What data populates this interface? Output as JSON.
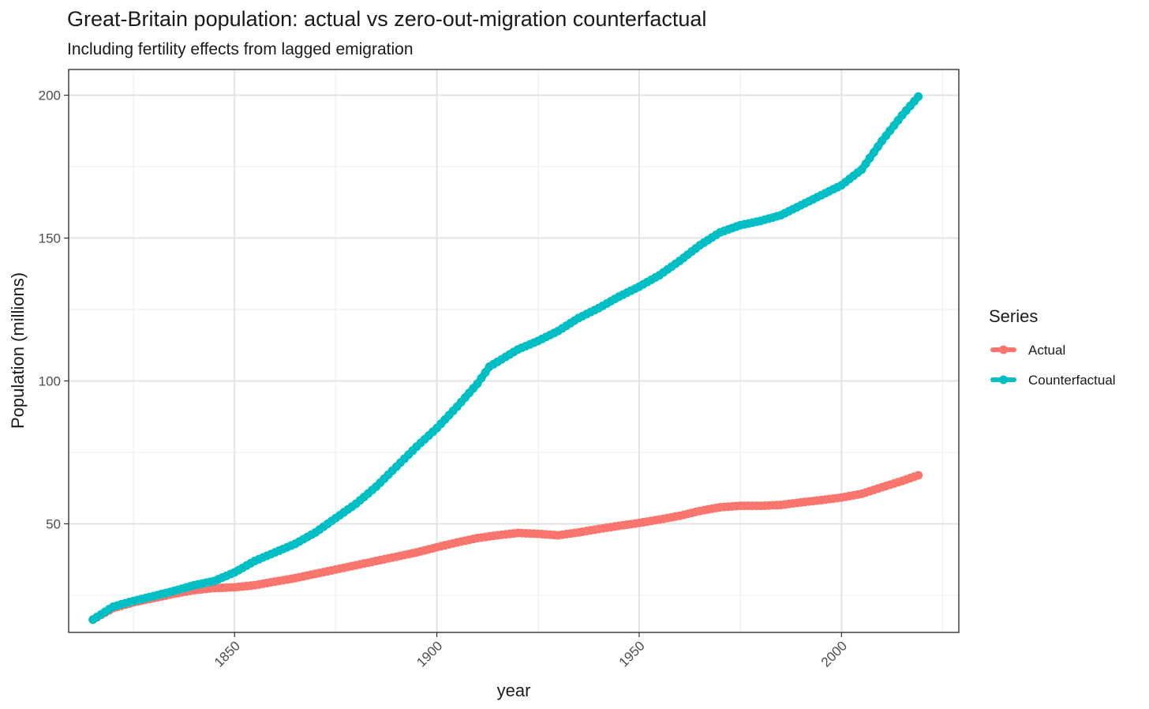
{
  "chart_data": {
    "type": "line",
    "title": "Great-Britain population: actual vs zero-out-migration counterfactual",
    "subtitle": "Including fertility effects from lagged emigration",
    "xlabel": "year",
    "ylabel": "Population (millions)",
    "xlim": [
      1809,
      2029
    ],
    "ylim": [
      12,
      209
    ],
    "x_ticks": [
      1850,
      1900,
      1950,
      2000
    ],
    "y_ticks": [
      50,
      100,
      150,
      200
    ],
    "grid": true,
    "legend": {
      "title": "Series",
      "position": "right"
    },
    "series": [
      {
        "name": "Actual",
        "color": "#F8766D",
        "points": [
          [
            1815,
            16.5
          ],
          [
            1820,
            20.5
          ],
          [
            1825,
            22.5
          ],
          [
            1830,
            24.0
          ],
          [
            1835,
            25.5
          ],
          [
            1840,
            26.8
          ],
          [
            1845,
            27.5
          ],
          [
            1850,
            27.8
          ],
          [
            1855,
            28.5
          ],
          [
            1860,
            29.8
          ],
          [
            1865,
            31.0
          ],
          [
            1870,
            32.5
          ],
          [
            1875,
            34.0
          ],
          [
            1880,
            35.5
          ],
          [
            1885,
            37.0
          ],
          [
            1890,
            38.5
          ],
          [
            1895,
            40.0
          ],
          [
            1900,
            41.8
          ],
          [
            1905,
            43.5
          ],
          [
            1910,
            45.0
          ],
          [
            1915,
            46.0
          ],
          [
            1920,
            46.8
          ],
          [
            1925,
            46.5
          ],
          [
            1930,
            46.0
          ],
          [
            1935,
            47.0
          ],
          [
            1940,
            48.2
          ],
          [
            1945,
            49.3
          ],
          [
            1950,
            50.3
          ],
          [
            1955,
            51.5
          ],
          [
            1960,
            52.8
          ],
          [
            1965,
            54.5
          ],
          [
            1970,
            55.8
          ],
          [
            1975,
            56.3
          ],
          [
            1980,
            56.3
          ],
          [
            1985,
            56.6
          ],
          [
            1990,
            57.5
          ],
          [
            1995,
            58.3
          ],
          [
            2000,
            59.2
          ],
          [
            2005,
            60.5
          ],
          [
            2010,
            62.8
          ],
          [
            2015,
            65.0
          ],
          [
            2019,
            67.0
          ]
        ]
      },
      {
        "name": "Counterfactual",
        "color": "#00BFC4",
        "points": [
          [
            1815,
            16.5
          ],
          [
            1820,
            21.0
          ],
          [
            1825,
            23.0
          ],
          [
            1830,
            24.7
          ],
          [
            1835,
            26.5
          ],
          [
            1840,
            28.5
          ],
          [
            1845,
            30.0
          ],
          [
            1850,
            33.0
          ],
          [
            1855,
            37.0
          ],
          [
            1860,
            40.0
          ],
          [
            1865,
            43.0
          ],
          [
            1870,
            47.0
          ],
          [
            1875,
            52.0
          ],
          [
            1880,
            57.0
          ],
          [
            1885,
            63.0
          ],
          [
            1890,
            70.0
          ],
          [
            1895,
            77.0
          ],
          [
            1900,
            83.5
          ],
          [
            1905,
            91.0
          ],
          [
            1910,
            99.0
          ],
          [
            1913,
            105.0
          ],
          [
            1920,
            111.0
          ],
          [
            1925,
            114.0
          ],
          [
            1930,
            117.5
          ],
          [
            1935,
            122.0
          ],
          [
            1940,
            125.5
          ],
          [
            1945,
            129.5
          ],
          [
            1950,
            133.0
          ],
          [
            1955,
            137.0
          ],
          [
            1960,
            142.0
          ],
          [
            1965,
            147.5
          ],
          [
            1970,
            152.0
          ],
          [
            1975,
            154.5
          ],
          [
            1980,
            156.0
          ],
          [
            1985,
            158.0
          ],
          [
            1990,
            161.5
          ],
          [
            1995,
            165.0
          ],
          [
            2000,
            168.5
          ],
          [
            2005,
            174.0
          ],
          [
            2010,
            184.0
          ],
          [
            2015,
            193.0
          ],
          [
            2019,
            199.5
          ]
        ]
      }
    ]
  }
}
